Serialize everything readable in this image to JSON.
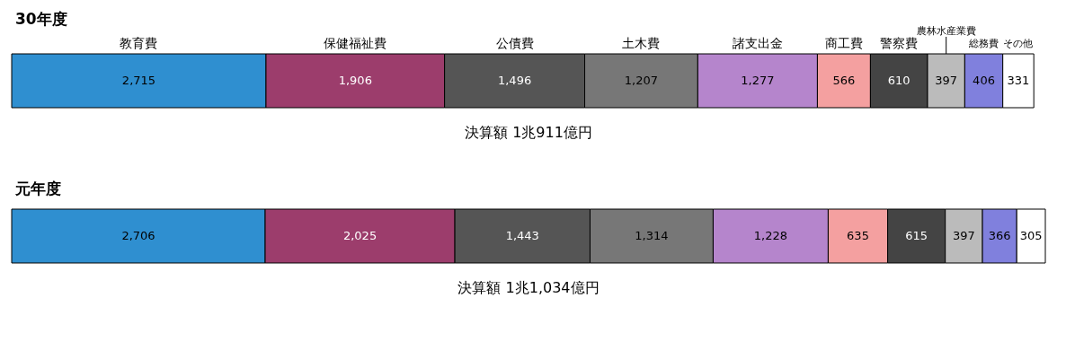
{
  "chart_data": {
    "type": "bar",
    "orientation": "horizontal",
    "stacked": true,
    "categories": [
      "30年度",
      "元年度"
    ],
    "series": [
      {
        "name": "教育費",
        "color": "#2f8fd0",
        "values": [
          2715,
          2706
        ],
        "value_labels": [
          "2,715",
          "2,706"
        ]
      },
      {
        "name": "保健福祉費",
        "color": "#9c3d6c",
        "values": [
          1906,
          2025
        ],
        "value_labels": [
          "1,906",
          "2,025"
        ]
      },
      {
        "name": "公債費",
        "color": "#555555",
        "values": [
          1496,
          1443
        ],
        "value_labels": [
          "1,496",
          "1,443"
        ]
      },
      {
        "name": "土木費",
        "color": "#777777",
        "values": [
          1207,
          1314
        ],
        "value_labels": [
          "1,207",
          "1,314"
        ]
      },
      {
        "name": "諸支出金",
        "color": "#b585cc",
        "values": [
          1277,
          1228
        ],
        "value_labels": [
          "1,277",
          "1,228"
        ]
      },
      {
        "name": "商工費",
        "color": "#f4a0a0",
        "values": [
          566,
          635
        ],
        "value_labels": [
          "566",
          "635"
        ]
      },
      {
        "name": "警察費",
        "color": "#444444",
        "values": [
          610,
          615
        ],
        "value_labels": [
          "610",
          "615"
        ]
      },
      {
        "name": "農林水産業費",
        "color": "#bbbbbb",
        "values": [
          397,
          397
        ],
        "value_labels": [
          "397",
          "397"
        ]
      },
      {
        "name": "総務費",
        "color": "#8080dd",
        "values": [
          406,
          366
        ],
        "value_labels": [
          "406",
          "366"
        ]
      },
      {
        "name": "その他",
        "color": "#ffffff",
        "values": [
          331,
          305
        ],
        "value_labels": [
          "331",
          "305"
        ]
      }
    ],
    "totals": [
      "決算額 1兆911億円",
      "決算額 1兆1,034億円"
    ]
  }
}
